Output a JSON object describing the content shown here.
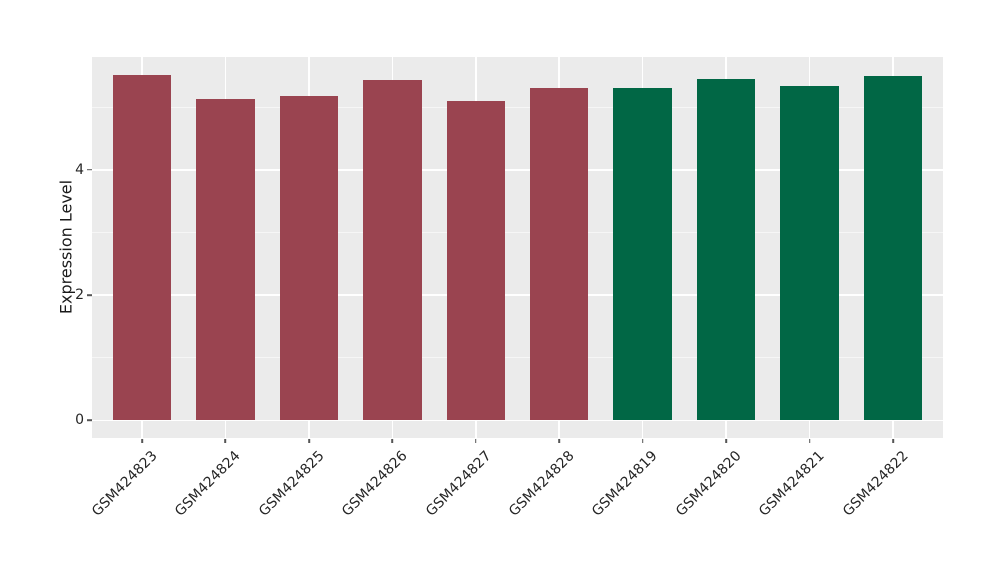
{
  "style": {
    "figure_background": "#ffffff",
    "plot_background": "#ebebeb",
    "grid_color": "#ffffff",
    "tick_mark_color": "#555555",
    "tick_label_color": "#262626",
    "axis_label_color": "#1a1a1a",
    "group_left_bar_color": "#9a4450",
    "group_right_bar_color": "#016745"
  },
  "chart_data": {
    "type": "bar",
    "ylabel": "Expression Level",
    "categories": [
      "GSM424823",
      "GSM424824",
      "GSM424825",
      "GSM424826",
      "GSM424827",
      "GSM424828",
      "GSM424819",
      "GSM424820",
      "GSM424821",
      "GSM424822"
    ],
    "values": [
      5.52,
      5.13,
      5.17,
      5.44,
      5.09,
      5.3,
      5.31,
      5.45,
      5.33,
      5.49
    ],
    "bar_colors": [
      "#9a4450",
      "#9a4450",
      "#9a4450",
      "#9a4450",
      "#9a4450",
      "#9a4450",
      "#016745",
      "#016745",
      "#016745",
      "#016745"
    ],
    "ylim": [
      -0.28,
      5.8
    ],
    "yticks": [
      0,
      2,
      4
    ],
    "ytick_labels": [
      "0",
      "2",
      "4"
    ],
    "y_minor_gridlines": [
      1,
      3,
      5
    ],
    "grid": "on",
    "legend_position": "none",
    "x_tick_rotation_deg": 45,
    "bar_width_fraction": 0.7
  }
}
